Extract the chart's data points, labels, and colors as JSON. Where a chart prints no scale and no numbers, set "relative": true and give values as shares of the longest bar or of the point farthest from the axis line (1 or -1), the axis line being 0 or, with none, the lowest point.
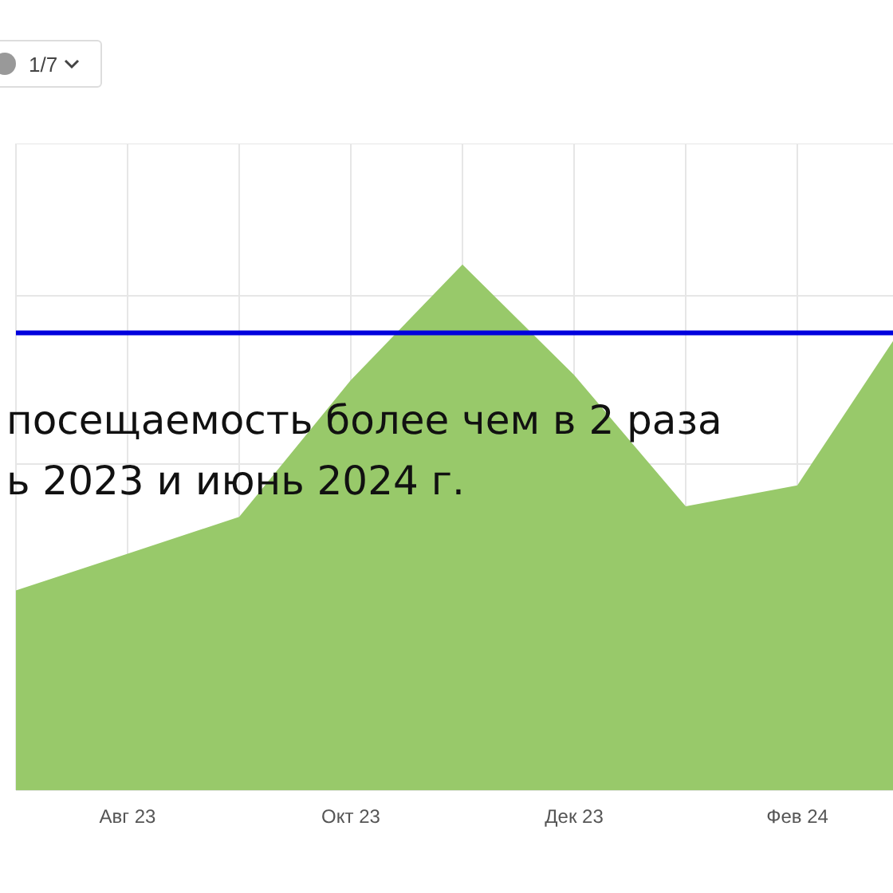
{
  "chart_data": {
    "type": "area",
    "relative": true,
    "categories": [
      null,
      "Авг 23",
      null,
      "Окт 23",
      null,
      "Дек 23",
      null,
      "Фев 24",
      null
    ],
    "series": [
      {
        "color": "#98c96a",
        "values": [
          0.38,
          0.45,
          0.52,
          0.78,
          1,
          0.79,
          0.54,
          0.58,
          0.9
        ]
      }
    ],
    "ref_lines": [
      {
        "axis": "y",
        "value": 0.87,
        "color": "#0000dd",
        "line_style": "solid"
      }
    ],
    "grid": true,
    "legend": false,
    "annotations": [
      "посещаемость более чем в 2 раза",
      "ь 2023 и июнь 2024 г.",
      "1/7"
    ]
  }
}
